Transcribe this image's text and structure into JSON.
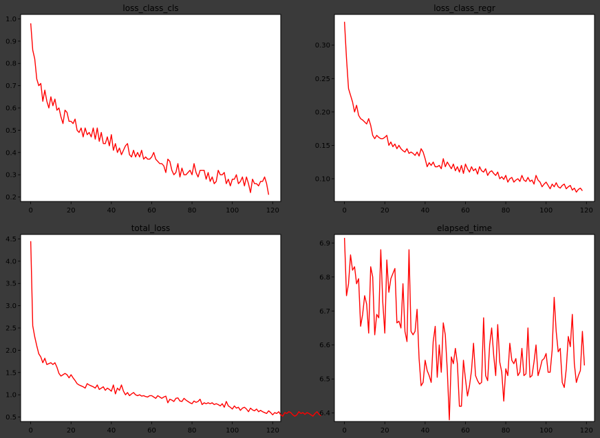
{
  "colors": {
    "background": "#3a3a3a",
    "plot_bg": "#ffffff",
    "line": "#ff0000",
    "text": "#000000"
  },
  "chart_data": [
    {
      "type": "line",
      "title": "loss_class_cls",
      "xlim": [
        -5,
        124
      ],
      "ylim": [
        0.18,
        1.02
      ],
      "xticks": [
        0,
        20,
        40,
        60,
        80,
        100,
        120
      ],
      "yticks": [
        0.2,
        0.3,
        0.4,
        0.5,
        0.6,
        0.7,
        0.8,
        0.9,
        1.0
      ],
      "ytick_labels": [
        "0.2",
        "0.3",
        "0.4",
        "0.5",
        "0.6",
        "0.7",
        "0.8",
        "0.9",
        "1.0"
      ],
      "grid": false,
      "series": [
        {
          "color": "#ff0000",
          "values": [
            0.98,
            0.86,
            0.82,
            0.73,
            0.7,
            0.71,
            0.63,
            0.68,
            0.63,
            0.6,
            0.65,
            0.61,
            0.64,
            0.59,
            0.6,
            0.56,
            0.53,
            0.59,
            0.58,
            0.54,
            0.54,
            0.53,
            0.55,
            0.5,
            0.49,
            0.51,
            0.47,
            0.51,
            0.48,
            0.49,
            0.47,
            0.51,
            0.46,
            0.51,
            0.45,
            0.49,
            0.44,
            0.44,
            0.47,
            0.43,
            0.48,
            0.41,
            0.44,
            0.4,
            0.42,
            0.39,
            0.41,
            0.43,
            0.44,
            0.39,
            0.38,
            0.41,
            0.38,
            0.4,
            0.38,
            0.41,
            0.37,
            0.38,
            0.37,
            0.37,
            0.38,
            0.4,
            0.37,
            0.36,
            0.35,
            0.35,
            0.34,
            0.31,
            0.37,
            0.36,
            0.32,
            0.3,
            0.31,
            0.35,
            0.29,
            0.33,
            0.3,
            0.3,
            0.31,
            0.32,
            0.3,
            0.35,
            0.31,
            0.29,
            0.32,
            0.32,
            0.32,
            0.28,
            0.31,
            0.27,
            0.29,
            0.26,
            0.27,
            0.32,
            0.3,
            0.3,
            0.31,
            0.26,
            0.28,
            0.25,
            0.28,
            0.28,
            0.3,
            0.26,
            0.27,
            0.29,
            0.25,
            0.29,
            0.26,
            0.22,
            0.28,
            0.26,
            0.26,
            0.25,
            0.27,
            0.27,
            0.29,
            0.26,
            0.21
          ]
        }
      ]
    },
    {
      "type": "line",
      "title": "loss_class_regr",
      "xlim": [
        -5,
        124
      ],
      "ylim": [
        0.066,
        0.346
      ],
      "xticks": [
        0,
        20,
        40,
        60,
        80,
        100,
        120
      ],
      "yticks": [
        0.1,
        0.15,
        0.2,
        0.25,
        0.3
      ],
      "ytick_labels": [
        "0.10",
        "0.15",
        "0.20",
        "0.25",
        "0.30"
      ],
      "grid": false,
      "series": [
        {
          "color": "#ff0000",
          "values": [
            0.335,
            0.28,
            0.235,
            0.225,
            0.215,
            0.2,
            0.21,
            0.195,
            0.19,
            0.188,
            0.185,
            0.182,
            0.19,
            0.18,
            0.165,
            0.16,
            0.165,
            0.162,
            0.16,
            0.16,
            0.162,
            0.165,
            0.15,
            0.155,
            0.148,
            0.152,
            0.145,
            0.15,
            0.145,
            0.142,
            0.14,
            0.145,
            0.138,
            0.14,
            0.138,
            0.135,
            0.14,
            0.134,
            0.145,
            0.14,
            0.13,
            0.118,
            0.124,
            0.12,
            0.125,
            0.118,
            0.118,
            0.12,
            0.115,
            0.13,
            0.118,
            0.125,
            0.12,
            0.115,
            0.122,
            0.112,
            0.118,
            0.11,
            0.12,
            0.108,
            0.122,
            0.115,
            0.11,
            0.118,
            0.112,
            0.115,
            0.107,
            0.118,
            0.112,
            0.11,
            0.115,
            0.105,
            0.11,
            0.112,
            0.108,
            0.105,
            0.11,
            0.1,
            0.103,
            0.099,
            0.105,
            0.095,
            0.1,
            0.102,
            0.095,
            0.098,
            0.1,
            0.096,
            0.105,
            0.098,
            0.096,
            0.102,
            0.096,
            0.098,
            0.092,
            0.105,
            0.098,
            0.095,
            0.088,
            0.092,
            0.095,
            0.09,
            0.085,
            0.092,
            0.088,
            0.094,
            0.088,
            0.086,
            0.09,
            0.092,
            0.085,
            0.088,
            0.09,
            0.083,
            0.086,
            0.08,
            0.084,
            0.086,
            0.082
          ]
        }
      ]
    },
    {
      "type": "line",
      "title": "total_loss",
      "xlim": [
        -5,
        124
      ],
      "ylim": [
        0.4,
        4.6
      ],
      "xticks": [
        0,
        20,
        40,
        60,
        80,
        100,
        120
      ],
      "yticks": [
        0.5,
        1.0,
        1.5,
        2.0,
        2.5,
        3.0,
        3.5,
        4.0,
        4.5
      ],
      "ytick_labels": [
        "0.5",
        "1.0",
        "1.5",
        "2.0",
        "2.5",
        "3.0",
        "3.5",
        "4.0",
        "4.5"
      ],
      "grid": false,
      "series": [
        {
          "color": "#ff0000",
          "values": [
            4.45,
            2.55,
            2.3,
            2.1,
            1.92,
            1.85,
            1.72,
            1.82,
            1.68,
            1.7,
            1.72,
            1.68,
            1.72,
            1.62,
            1.48,
            1.42,
            1.45,
            1.48,
            1.45,
            1.38,
            1.45,
            1.38,
            1.32,
            1.25,
            1.22,
            1.2,
            1.18,
            1.15,
            1.25,
            1.22,
            1.2,
            1.18,
            1.15,
            1.22,
            1.12,
            1.15,
            1.18,
            1.1,
            1.15,
            1.12,
            1.08,
            1.22,
            1.02,
            1.15,
            1.1,
            1.22,
            1.08,
            1.0,
            1.05,
            0.98,
            1.02,
            1.05,
            1.0,
            0.98,
            1.0,
            0.97,
            0.98,
            0.96,
            0.95,
            0.98,
            0.98,
            0.95,
            0.92,
            0.98,
            0.95,
            0.92,
            0.95,
            0.97,
            0.82,
            0.9,
            0.88,
            0.85,
            0.92,
            0.93,
            0.86,
            0.85,
            0.92,
            0.88,
            0.85,
            0.82,
            0.8,
            0.86,
            0.83,
            0.85,
            0.9,
            0.78,
            0.82,
            0.8,
            0.82,
            0.8,
            0.82,
            0.78,
            0.8,
            0.78,
            0.75,
            0.8,
            0.72,
            0.85,
            0.75,
            0.72,
            0.68,
            0.75,
            0.7,
            0.72,
            0.65,
            0.7,
            0.72,
            0.68,
            0.62,
            0.7,
            0.66,
            0.64,
            0.68,
            0.62,
            0.65,
            0.62,
            0.6,
            0.58,
            0.64,
            0.6,
            0.55,
            0.6,
            0.58,
            0.62,
            0.55,
            0.52,
            0.6,
            0.58,
            0.62,
            0.6,
            0.55,
            0.52,
            0.55,
            0.62,
            0.58,
            0.6,
            0.56,
            0.6,
            0.58,
            0.55,
            0.52,
            0.58,
            0.62,
            0.56,
            0.53
          ]
        }
      ]
    },
    {
      "type": "line",
      "title": "elapsed_time",
      "xlim": [
        -5,
        124
      ],
      "ylim": [
        6.375,
        6.925
      ],
      "xticks": [
        0,
        20,
        40,
        60,
        80,
        100,
        120
      ],
      "yticks": [
        6.4,
        6.5,
        6.6,
        6.7,
        6.8,
        6.9
      ],
      "ytick_labels": [
        "6.4",
        "6.5",
        "6.6",
        "6.7",
        "6.8",
        "6.9"
      ],
      "grid": false,
      "series": [
        {
          "color": "#ff0000",
          "values": [
            6.915,
            6.745,
            6.78,
            6.865,
            6.82,
            6.83,
            6.78,
            6.795,
            6.655,
            6.69,
            6.745,
            6.72,
            6.635,
            6.83,
            6.8,
            6.63,
            6.69,
            6.68,
            6.88,
            6.725,
            6.635,
            6.85,
            6.755,
            6.795,
            6.81,
            6.825,
            6.665,
            6.67,
            6.65,
            6.78,
            6.64,
            6.61,
            6.88,
            6.64,
            6.63,
            6.64,
            6.705,
            6.56,
            6.48,
            6.49,
            6.555,
            6.525,
            6.51,
            6.49,
            6.61,
            6.655,
            6.505,
            6.6,
            6.52,
            6.665,
            6.63,
            6.525,
            6.38,
            6.565,
            6.545,
            6.59,
            6.545,
            6.42,
            6.42,
            6.555,
            6.5,
            6.45,
            6.48,
            6.525,
            6.605,
            6.51,
            6.495,
            6.485,
            6.49,
            6.68,
            6.51,
            6.495,
            6.6,
            6.65,
            6.57,
            6.51,
            6.66,
            6.55,
            6.52,
            6.435,
            6.53,
            6.51,
            6.605,
            6.555,
            6.545,
            6.56,
            6.51,
            6.52,
            6.59,
            6.51,
            6.515,
            6.65,
            6.505,
            6.51,
            6.55,
            6.6,
            6.51,
            6.53,
            6.555,
            6.56,
            6.575,
            6.52,
            6.52,
            6.585,
            6.74,
            6.64,
            6.58,
            6.59,
            6.49,
            6.475,
            6.53,
            6.625,
            6.595,
            6.69,
            6.545,
            6.49,
            6.51,
            6.525,
            6.64,
            6.54
          ]
        }
      ]
    }
  ]
}
